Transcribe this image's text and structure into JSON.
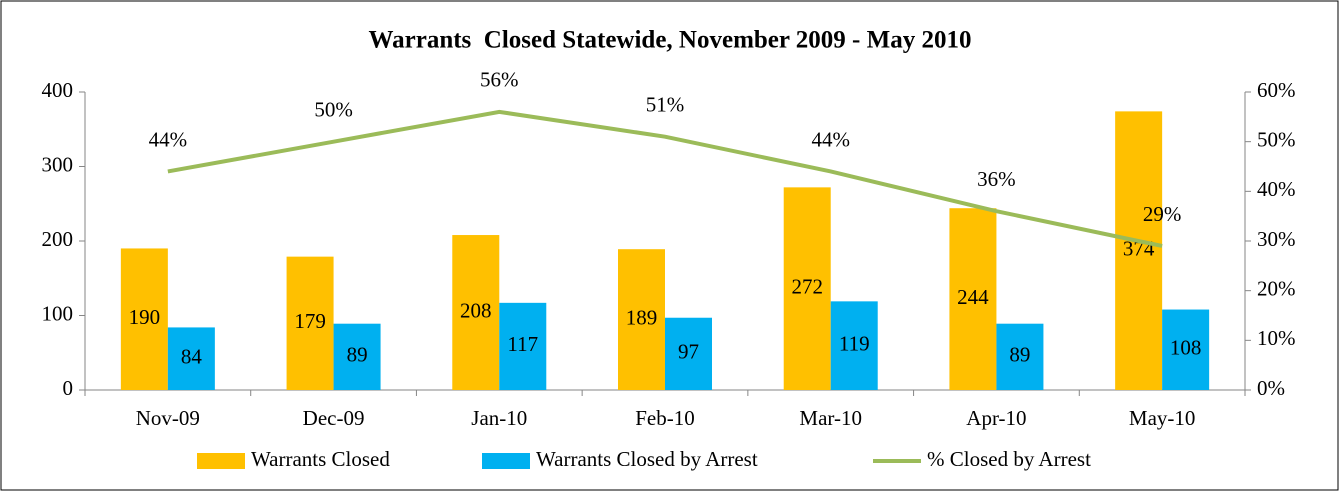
{
  "chart_data": {
    "type": "bar",
    "title": "Warrants  Closed Statewide, November 2009 - May 2010",
    "categories": [
      "Nov-09",
      "Dec-09",
      "Jan-10",
      "Feb-10",
      "Mar-10",
      "Apr-10",
      "May-10"
    ],
    "series": [
      {
        "name": "Warrants Closed",
        "color": "#FFC000",
        "type": "bar",
        "values": [
          190,
          179,
          208,
          189,
          272,
          244,
          374
        ]
      },
      {
        "name": "Warrants Closed by Arrest",
        "color": "#00B0F0",
        "type": "bar",
        "values": [
          84,
          89,
          117,
          97,
          119,
          89,
          108
        ]
      },
      {
        "name": "% Closed by Arrest",
        "color": "#9BBB59",
        "type": "line",
        "axis": "y2",
        "values": [
          44,
          50,
          56,
          51,
          44,
          36,
          29
        ],
        "value_labels": [
          "44%",
          "50%",
          "56%",
          "51%",
          "44%",
          "36%",
          "29%"
        ]
      }
    ],
    "ylim": [
      0,
      400
    ],
    "yticks": [
      0,
      100,
      200,
      300,
      400
    ],
    "y2lim": [
      0,
      60
    ],
    "y2ticks": [
      {
        "value": 0,
        "label": "0%"
      },
      {
        "value": 10,
        "label": "10%"
      },
      {
        "value": 20,
        "label": "20%"
      },
      {
        "value": 30,
        "label": "30%"
      },
      {
        "value": 40,
        "label": "40%"
      },
      {
        "value": 50,
        "label": "50%"
      },
      {
        "value": 60,
        "label": "60%"
      }
    ],
    "legend": "bottom",
    "grid": false
  }
}
